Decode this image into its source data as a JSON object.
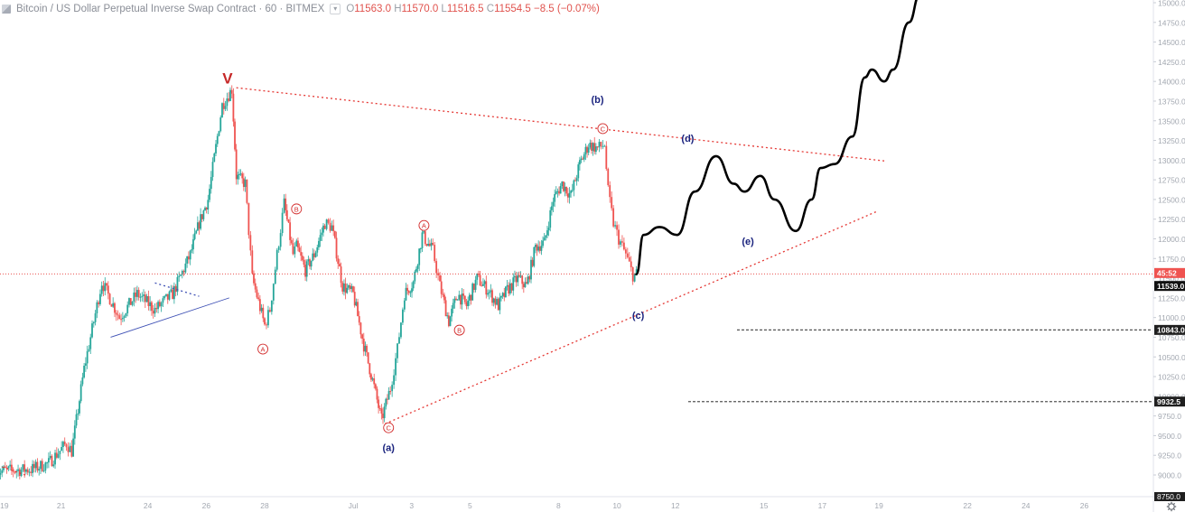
{
  "header": {
    "title": "Bitcoin / US Dollar Perpetual Inverse Swap Contract · 60 · BITMEX",
    "ohlc": [
      {
        "key": "O",
        "value": "11563.0"
      },
      {
        "key": "H",
        "value": "11570.0"
      },
      {
        "key": "L",
        "value": "11516.5"
      },
      {
        "key": "C",
        "value": "11554.5"
      }
    ],
    "change": "−8.5 (−0.07%)"
  },
  "colors": {
    "up": "#26a69a",
    "down": "#ef5350",
    "trendline": "#e53935",
    "wave_label": "#1a237e",
    "projection": "#000000",
    "price_line": "#e53935",
    "blue_line": "#3f51b5"
  },
  "chart_data": {
    "type": "candlestick",
    "title": "",
    "y_axis": {
      "range": [
        8700,
        15100
      ],
      "side": "right",
      "ticks": [
        9000.0,
        9250.0,
        9500.0,
        9750.0,
        10000.0,
        10250.0,
        10500.0,
        10750.0,
        11000.0,
        11250.0,
        11500.0,
        11750.0,
        12000.0,
        12250.0,
        12500.0,
        12750.0,
        13000.0,
        13250.0,
        13500.0,
        13750.0,
        14000.0,
        14250.0,
        14500.0,
        14750.0,
        15000.0
      ],
      "tick_labels": [
        "9000.0",
        "9250.0",
        "9500.0",
        "9750.0",
        "10000.0",
        "10250.0",
        "10500.0",
        "10750.0",
        "11000.0",
        "11250.0",
        "11500.0",
        "11750.0",
        "12000.0",
        "12250.0",
        "12500.0",
        "12750.0",
        "13000.0",
        "13250.0",
        "13500.0",
        "13750.0",
        "14000.0",
        "14250.0",
        "14500.0",
        "14750.0",
        "15000.0"
      ],
      "bottom_partial_label": "8750.0"
    },
    "x_axis": {
      "labels": [
        "19",
        "21",
        "24",
        "26",
        "28",
        "Jul",
        "3",
        "5",
        "8",
        "10",
        "12",
        "15",
        "17",
        "19",
        "22",
        "24",
        "26"
      ]
    },
    "price_labels": [
      {
        "text": "45:52",
        "value": 11554.5,
        "style": "countdown"
      },
      {
        "text": "11539.0",
        "value": 11539,
        "style": "last"
      },
      {
        "text": "10843.0",
        "value": 10843,
        "style": "level"
      },
      {
        "text": "9932.5",
        "value": 9932.5,
        "style": "level"
      }
    ],
    "horizontal_levels": [
      {
        "value": 10843,
        "style": "dashed",
        "from_x_label": "14"
      },
      {
        "value": 9932.5,
        "style": "dashed",
        "from_x_label": "12"
      }
    ],
    "price_path": [
      [
        -2,
        9050
      ],
      [
        0,
        9070
      ],
      [
        1,
        9150
      ],
      [
        2,
        9400
      ],
      [
        2.3,
        9300
      ],
      [
        3,
        10350
      ],
      [
        4,
        11450
      ],
      [
        5,
        11000
      ],
      [
        6,
        11300
      ],
      [
        7,
        11100
      ],
      [
        8,
        11300
      ],
      [
        9,
        11800
      ],
      [
        9.5,
        12200
      ],
      [
        10,
        12500
      ],
      [
        10.8,
        13700
      ],
      [
        11.35,
        13900
      ],
      [
        11.6,
        12800
      ],
      [
        12.1,
        12700
      ],
      [
        12.5,
        11500
      ],
      [
        13.2,
        10900
      ],
      [
        13.5,
        11100
      ],
      [
        13.9,
        11800
      ],
      [
        14.3,
        12450
      ],
      [
        14.8,
        11800
      ],
      [
        15,
        11900
      ],
      [
        15.5,
        11600
      ],
      [
        16,
        11800
      ],
      [
        16.6,
        12200
      ],
      [
        17,
        12150
      ],
      [
        17.6,
        11400
      ],
      [
        18.2,
        11300
      ],
      [
        18.8,
        10650
      ],
      [
        19.3,
        10200
      ],
      [
        19.8,
        9700
      ],
      [
        20.3,
        10100
      ],
      [
        20.7,
        10600
      ],
      [
        21.1,
        11300
      ],
      [
        21.6,
        11450
      ],
      [
        22.1,
        12050
      ],
      [
        22.7,
        11850
      ],
      [
        23.1,
        11400
      ],
      [
        23.6,
        10950
      ],
      [
        24.1,
        11300
      ],
      [
        24.6,
        11150
      ],
      [
        25.2,
        11500
      ],
      [
        25.8,
        11350
      ],
      [
        26.4,
        11150
      ],
      [
        26.9,
        11350
      ],
      [
        27.5,
        11500
      ],
      [
        28,
        11400
      ],
      [
        28.5,
        11900
      ],
      [
        29,
        11950
      ],
      [
        29.5,
        12500
      ],
      [
        30,
        12700
      ],
      [
        30.5,
        12550
      ],
      [
        31,
        12950
      ],
      [
        31.5,
        13200
      ],
      [
        32,
        13150
      ],
      [
        32.4,
        13200
      ],
      [
        32.6,
        12600
      ],
      [
        32.9,
        12200
      ],
      [
        33.2,
        12000
      ],
      [
        33.6,
        11800
      ],
      [
        34,
        11540
      ],
      [
        34.2,
        11550
      ]
    ],
    "trendlines": [
      {
        "name": "upper",
        "points": [
          [
            11.6,
            13920
          ],
          [
            48.2,
            12990
          ]
        ],
        "style": "dotted",
        "color": "trendline"
      },
      {
        "name": "lower",
        "points": [
          [
            20,
            9650
          ],
          [
            47.8,
            12350
          ]
        ],
        "style": "dotted",
        "color": "trendline"
      },
      {
        "name": "early-support",
        "points": [
          [
            -2.1,
            9140
          ],
          [
            -0.2,
            8990
          ]
        ],
        "style": "dotted",
        "color": "trendline"
      },
      {
        "name": "blue-upper",
        "points": [
          [
            7,
            11440
          ],
          [
            9.5,
            11270
          ]
        ],
        "style": "dotted",
        "color": "blue_line"
      },
      {
        "name": "blue-lower",
        "points": [
          [
            4.5,
            10750
          ],
          [
            11.2,
            11250
          ]
        ],
        "style": "solid-thin",
        "color": "blue_line"
      }
    ],
    "projection": [
      [
        34.2,
        11550
      ],
      [
        34.6,
        12050
      ],
      [
        35.5,
        12150
      ],
      [
        36.5,
        12050
      ],
      [
        37.5,
        12600
      ],
      [
        38.7,
        13050
      ],
      [
        39.7,
        12700
      ],
      [
        40.3,
        12600
      ],
      [
        41.2,
        12800
      ],
      [
        42,
        12500
      ],
      [
        43.2,
        12100
      ],
      [
        44.1,
        12500
      ],
      [
        44.6,
        12900
      ],
      [
        45.4,
        12950
      ],
      [
        46.4,
        13300
      ],
      [
        47.1,
        14050
      ],
      [
        47.5,
        14150
      ],
      [
        48.2,
        14000
      ],
      [
        48.7,
        14150
      ],
      [
        49.6,
        14750
      ],
      [
        50.2,
        15100
      ]
    ],
    "annotations": [
      {
        "text": "V",
        "type": "big",
        "at": [
          11.1,
          14040
        ]
      },
      {
        "text": "A",
        "type": "circle",
        "at": [
          13.1,
          10600
        ]
      },
      {
        "text": "B",
        "type": "circle",
        "at": [
          15.0,
          12380
        ]
      },
      {
        "text": "C",
        "type": "circle",
        "at": [
          20.2,
          9600
        ]
      },
      {
        "text": "(a)",
        "type": "wave",
        "at": [
          20.2,
          9350
        ]
      },
      {
        "text": "A",
        "type": "circle",
        "at": [
          22.2,
          12170
        ]
      },
      {
        "text": "B",
        "type": "circle",
        "at": [
          24.2,
          10840
        ]
      },
      {
        "text": "(b)",
        "type": "wave",
        "at": [
          32.0,
          13770
        ]
      },
      {
        "text": "C",
        "type": "circle",
        "at": [
          32.3,
          13400
        ]
      },
      {
        "text": "(c)",
        "type": "wave",
        "at": [
          34.3,
          11030
        ]
      },
      {
        "text": "(d)",
        "type": "wave",
        "at": [
          37.1,
          13280
        ]
      },
      {
        "text": "(e)",
        "type": "wave",
        "at": [
          40.5,
          11970
        ]
      }
    ]
  }
}
